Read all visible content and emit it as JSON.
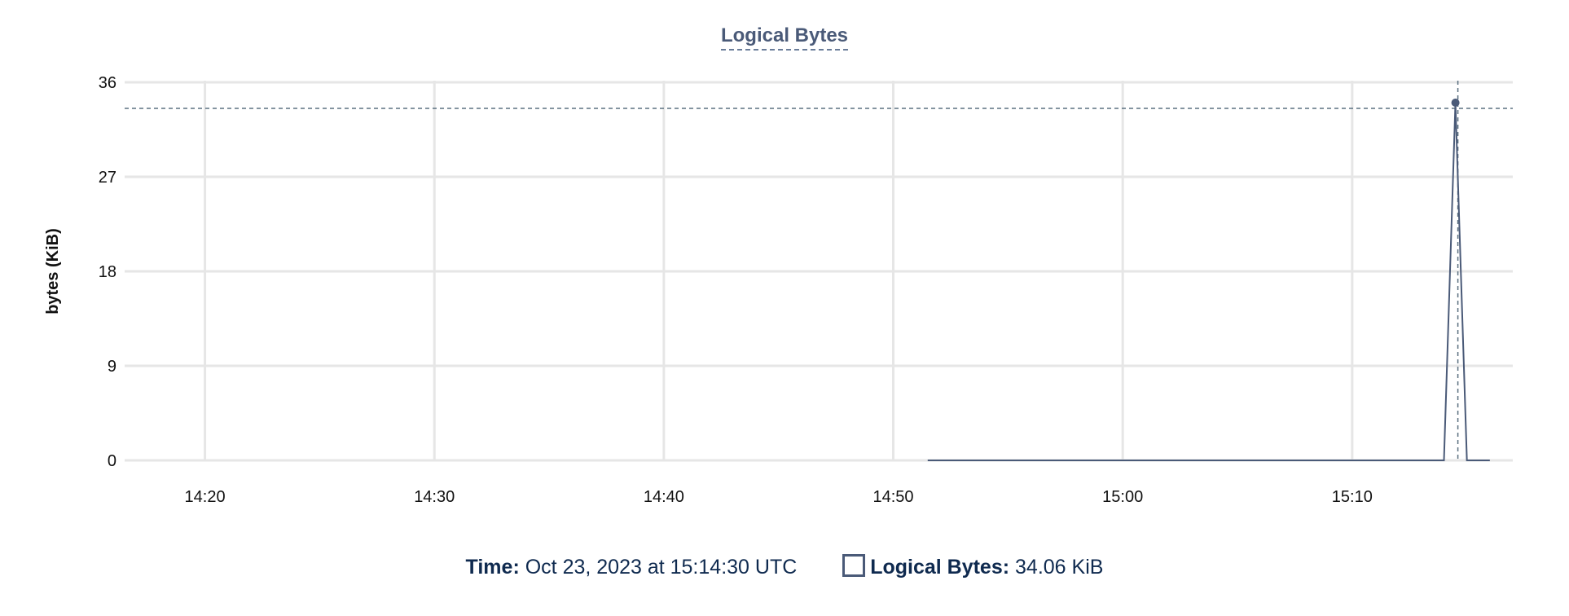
{
  "chart_data": {
    "type": "line",
    "title": "Logical Bytes",
    "ylabel": "bytes (KiB)",
    "xlabel": "",
    "ylim": [
      0,
      36
    ],
    "yticks": [
      0,
      9,
      18,
      27,
      36
    ],
    "xlim": [
      "14:16:30",
      "15:17:00"
    ],
    "xticks": [
      "14:20",
      "14:30",
      "14:40",
      "14:50",
      "15:00",
      "15:10"
    ],
    "grid": true,
    "series": [
      {
        "name": "Logical Bytes",
        "color": "#4a5a78",
        "x": [
          "14:51:30",
          "15:14:00",
          "15:14:30",
          "15:15:00",
          "15:16:00"
        ],
        "values": [
          0,
          0,
          34.06,
          0,
          0
        ]
      }
    ],
    "crosshair": {
      "x": "15:14:30",
      "y": 34.06
    }
  },
  "legend": {
    "time_label": "Time:",
    "time_value": "Oct 23, 2023 at 15:14:30 UTC",
    "series_label": "Logical Bytes:",
    "series_value": "34.06 KiB"
  }
}
